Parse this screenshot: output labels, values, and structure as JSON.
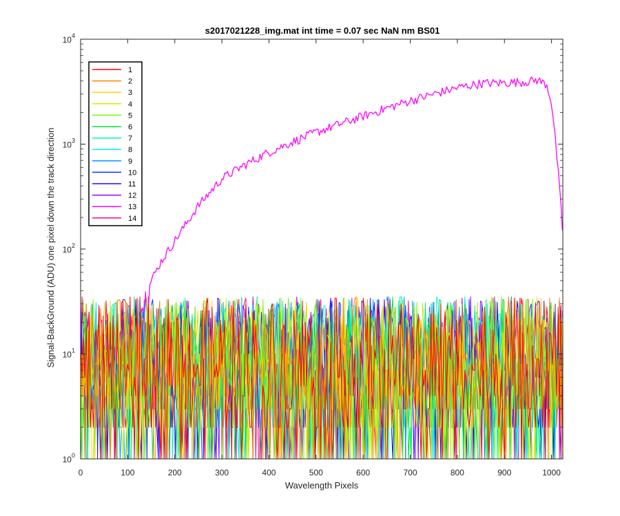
{
  "chart_data": {
    "type": "line",
    "title": "s2017021228_img.mat int time = 0.07 sec  NaN nm BS01",
    "xlabel": "Wavelength Pixels",
    "ylabel": "Signal-BackGround (ADU) one pixel down the track direction",
    "xlim": [
      0,
      1024
    ],
    "ylim": [
      1,
      10000
    ],
    "yscale": "log",
    "xticks": [
      0,
      100,
      200,
      300,
      400,
      500,
      600,
      700,
      800,
      900,
      1000
    ],
    "yticks": [
      {
        "value": 1,
        "base": "10",
        "exp": "0"
      },
      {
        "value": 10,
        "base": "10",
        "exp": "1"
      },
      {
        "value": 100,
        "base": "10",
        "exp": "2"
      },
      {
        "value": 1000,
        "base": "10",
        "exp": "3"
      },
      {
        "value": 10000,
        "base": "10",
        "exp": "4"
      }
    ],
    "legend_position": "top-left",
    "grid": false,
    "noise_band": {
      "min": 1,
      "max": 35
    },
    "series": [
      {
        "name": "1",
        "color": "#ff0000"
      },
      {
        "name": "2",
        "color": "#ff7f00"
      },
      {
        "name": "3",
        "color": "#ffd500"
      },
      {
        "name": "4",
        "color": "#c8f000"
      },
      {
        "name": "5",
        "color": "#6cff00"
      },
      {
        "name": "6",
        "color": "#00e63c"
      },
      {
        "name": "7",
        "color": "#00f5a0"
      },
      {
        "name": "8",
        "color": "#00f5f0"
      },
      {
        "name": "9",
        "color": "#0099ff"
      },
      {
        "name": "10",
        "color": "#0033ff"
      },
      {
        "name": "11",
        "color": "#3300ff"
      },
      {
        "name": "12",
        "color": "#9900ff"
      },
      {
        "name": "13",
        "color": "#ff00ff",
        "signal_points": [
          [
            0,
            8
          ],
          [
            40,
            10
          ],
          [
            80,
            12
          ],
          [
            110,
            15
          ],
          [
            130,
            25
          ],
          [
            150,
            50
          ],
          [
            170,
            75
          ],
          [
            200,
            120
          ],
          [
            250,
            260
          ],
          [
            300,
            470
          ],
          [
            350,
            640
          ],
          [
            400,
            840
          ],
          [
            450,
            1050
          ],
          [
            500,
            1300
          ],
          [
            550,
            1550
          ],
          [
            600,
            1850
          ],
          [
            650,
            2200
          ],
          [
            700,
            2600
          ],
          [
            750,
            3000
          ],
          [
            800,
            3450
          ],
          [
            850,
            3800
          ],
          [
            900,
            3850
          ],
          [
            950,
            3950
          ],
          [
            970,
            4100
          ],
          [
            990,
            3700
          ],
          [
            1000,
            2500
          ],
          [
            1010,
            900
          ],
          [
            1020,
            250
          ],
          [
            1024,
            130
          ]
        ]
      },
      {
        "name": "14",
        "color": "#ff0080"
      }
    ]
  }
}
